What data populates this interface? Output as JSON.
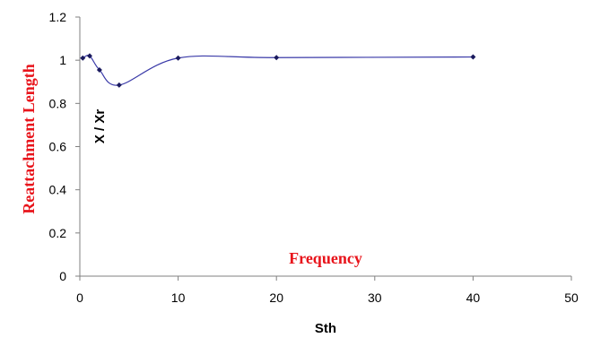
{
  "chart_data": {
    "type": "line",
    "x_label": "Sth",
    "y_label": "X / Xr",
    "y_annotation": "Reattachment Length",
    "x_annotation": "Frequency",
    "xlim": [
      0,
      50
    ],
    "ylim": [
      0,
      1.2
    ],
    "x_ticks": [
      "0",
      "10",
      "20",
      "30",
      "40",
      "50"
    ],
    "y_ticks": [
      "0",
      "0.2",
      "0.4",
      "0.6",
      "0.8",
      "1",
      "1.2"
    ],
    "grid": false,
    "line_style": "smoothed",
    "marker": "diamond",
    "series": [
      {
        "x": [
          0.3,
          1.0,
          2.0,
          4.0,
          10.0,
          20.0,
          40.0
        ],
        "y": [
          1.01,
          1.02,
          0.955,
          0.885,
          1.01,
          1.012,
          1.015
        ]
      }
    ],
    "colors": {
      "line": "#3a3aa8",
      "marker": "#1a1a5e",
      "annotation": "#e8141b"
    }
  }
}
